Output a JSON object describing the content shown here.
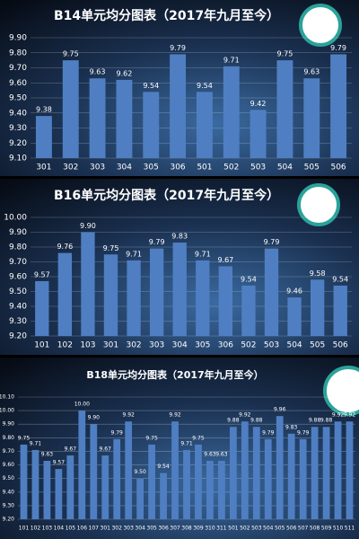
{
  "chart_data": [
    {
      "type": "bar",
      "title": "B14单元均分图表（2017年九月至今）",
      "color": "#4f7fc2",
      "categories": [
        "301",
        "302",
        "303",
        "304",
        "305",
        "306",
        "501",
        "502",
        "503",
        "504",
        "505",
        "506"
      ],
      "values": [
        9.38,
        9.75,
        9.63,
        9.62,
        9.54,
        9.79,
        9.54,
        9.71,
        9.42,
        9.75,
        9.63,
        9.79
      ],
      "value_labels": [
        "9.38",
        "9.75",
        "9.63",
        "9.62",
        "9.54",
        "9.79",
        "9.54",
        "9.71",
        "9.42",
        "9.75",
        "9.63",
        "9.79"
      ],
      "ylim": [
        9.1,
        9.9
      ],
      "yticks": [
        {
          "value": 9.1,
          "label": "9.10"
        },
        {
          "value": 9.2,
          "label": "9.20"
        },
        {
          "value": 9.3,
          "label": "9.30"
        },
        {
          "value": 9.4,
          "label": "9.40"
        },
        {
          "value": 9.5,
          "label": "9.50"
        },
        {
          "value": 9.6,
          "label": "9.60"
        },
        {
          "value": 9.7,
          "label": "9.70"
        },
        {
          "value": 9.8,
          "label": "9.80"
        },
        {
          "value": 9.9,
          "label": "9.90"
        }
      ],
      "grid": true
    },
    {
      "type": "bar",
      "title": "B16单元均分图表（2017年九月至今）",
      "color": "#4f7fc2",
      "categories": [
        "101",
        "102",
        "103",
        "301",
        "302",
        "303",
        "304",
        "305",
        "306",
        "502",
        "503",
        "504",
        "505",
        "506"
      ],
      "values": [
        9.57,
        9.76,
        9.9,
        9.75,
        9.71,
        9.79,
        9.83,
        9.71,
        9.67,
        9.54,
        9.79,
        9.46,
        9.58,
        9.54
      ],
      "value_labels": [
        "9.57",
        "9.76",
        "9.90",
        "9.75",
        "9.71",
        "9.79",
        "9.83",
        "9.71",
        "9.67",
        "9.54",
        "9.79",
        "9.46",
        "9.58",
        "9.54"
      ],
      "ylim": [
        9.2,
        10.0
      ],
      "yticks": [
        {
          "value": 9.2,
          "label": "9.20"
        },
        {
          "value": 9.3,
          "label": "9.30"
        },
        {
          "value": 9.4,
          "label": "9.40"
        },
        {
          "value": 9.5,
          "label": "9.50"
        },
        {
          "value": 9.6,
          "label": "9.60"
        },
        {
          "value": 9.7,
          "label": "9.70"
        },
        {
          "value": 9.8,
          "label": "9.80"
        },
        {
          "value": 9.9,
          "label": "9.90"
        },
        {
          "value": 10.0,
          "label": "10.00"
        }
      ],
      "grid": true
    },
    {
      "type": "bar",
      "title": "B18单元均分图表（2017年九月至今）",
      "color": "#4f7fc2",
      "categories": [
        "101",
        "102",
        "103",
        "104",
        "105",
        "106",
        "107",
        "301",
        "302",
        "303",
        "304",
        "305",
        "306",
        "307",
        "308",
        "309",
        "310",
        "311",
        "501",
        "502",
        "503",
        "504",
        "505",
        "506",
        "507",
        "508",
        "509",
        "510",
        "511"
      ],
      "values": [
        9.75,
        9.71,
        9.63,
        9.57,
        9.67,
        10.0,
        9.9,
        9.67,
        9.79,
        9.92,
        9.5,
        9.75,
        9.54,
        9.92,
        9.71,
        9.75,
        9.63,
        9.63,
        9.88,
        9.92,
        9.88,
        9.79,
        9.96,
        9.83,
        9.79,
        9.88,
        9.88,
        9.92,
        9.92
      ],
      "value_labels": [
        "9.75",
        "9.71",
        "9.63",
        "9.57",
        "9.67",
        "10.00",
        "9.90",
        "9.67",
        "9.79",
        "9.92",
        "9.50",
        "9.75",
        "9.54",
        "9.92",
        "9.71",
        "9.75",
        "9.63",
        "9.63",
        "9.88",
        "9.92",
        "9.88",
        "9.79",
        "9.96",
        "9.83",
        "9.79",
        "9.88",
        "9.88",
        "9.92",
        "9.92"
      ],
      "ylim": [
        9.2,
        10.1
      ],
      "yticks": [
        {
          "value": 9.2,
          "label": "9.20"
        },
        {
          "value": 9.3,
          "label": "9.30"
        },
        {
          "value": 9.4,
          "label": "9.40"
        },
        {
          "value": 9.5,
          "label": "9.50"
        },
        {
          "value": 9.6,
          "label": "9.60"
        },
        {
          "value": 9.7,
          "label": "9.70"
        },
        {
          "value": 9.8,
          "label": "9.80"
        },
        {
          "value": 9.9,
          "label": "9.90"
        },
        {
          "value": 10.0,
          "label": "10.00"
        },
        {
          "value": 10.1,
          "label": "10.10"
        }
      ],
      "grid": true
    }
  ]
}
